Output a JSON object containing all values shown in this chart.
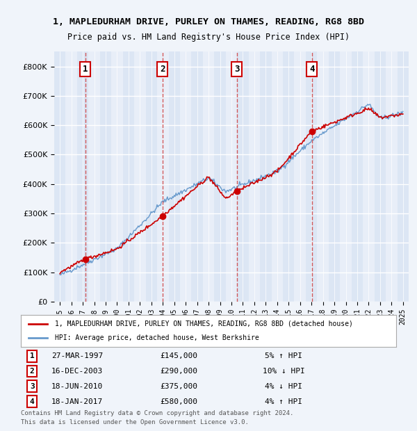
{
  "title1": "1, MAPLEDURHAM DRIVE, PURLEY ON THAMES, READING, RG8 8BD",
  "title2": "Price paid vs. HM Land Registry's House Price Index (HPI)",
  "ylabel": "",
  "xlim_start": 1994.5,
  "xlim_end": 2025.5,
  "ylim": [
    0,
    850000
  ],
  "yticks": [
    0,
    100000,
    200000,
    300000,
    400000,
    500000,
    600000,
    700000,
    800000
  ],
  "ytick_labels": [
    "£0",
    "£100K",
    "£200K",
    "£300K",
    "£400K",
    "£500K",
    "£600K",
    "£700K",
    "£800K"
  ],
  "background_color": "#f0f4fa",
  "plot_bg": "#e8eef8",
  "grid_color": "#ffffff",
  "hpi_color": "#6699cc",
  "price_color": "#cc0000",
  "sale_marker_color": "#cc0000",
  "sale_vline_color": "#cc3333",
  "sale_label_box_color": "#cc0000",
  "sales": [
    {
      "num": 1,
      "year": 1997.23,
      "price": 145000,
      "date": "27-MAR-1997",
      "pct": "5%",
      "dir": "↑"
    },
    {
      "num": 2,
      "year": 2003.96,
      "price": 290000,
      "date": "16-DEC-2003",
      "pct": "10%",
      "dir": "↓"
    },
    {
      "num": 3,
      "year": 2010.46,
      "price": 375000,
      "date": "18-JUN-2010",
      "pct": "4%",
      "dir": "↓"
    },
    {
      "num": 4,
      "year": 2017.05,
      "price": 580000,
      "date": "18-JAN-2017",
      "pct": "4%",
      "dir": "↑"
    }
  ],
  "legend_line1": "1, MAPLEDURHAM DRIVE, PURLEY ON THAMES, READING, RG8 8BD (detached house)",
  "legend_line2": "HPI: Average price, detached house, West Berkshire",
  "footer1": "Contains HM Land Registry data © Crown copyright and database right 2024.",
  "footer2": "This data is licensed under the Open Government Licence v3.0."
}
